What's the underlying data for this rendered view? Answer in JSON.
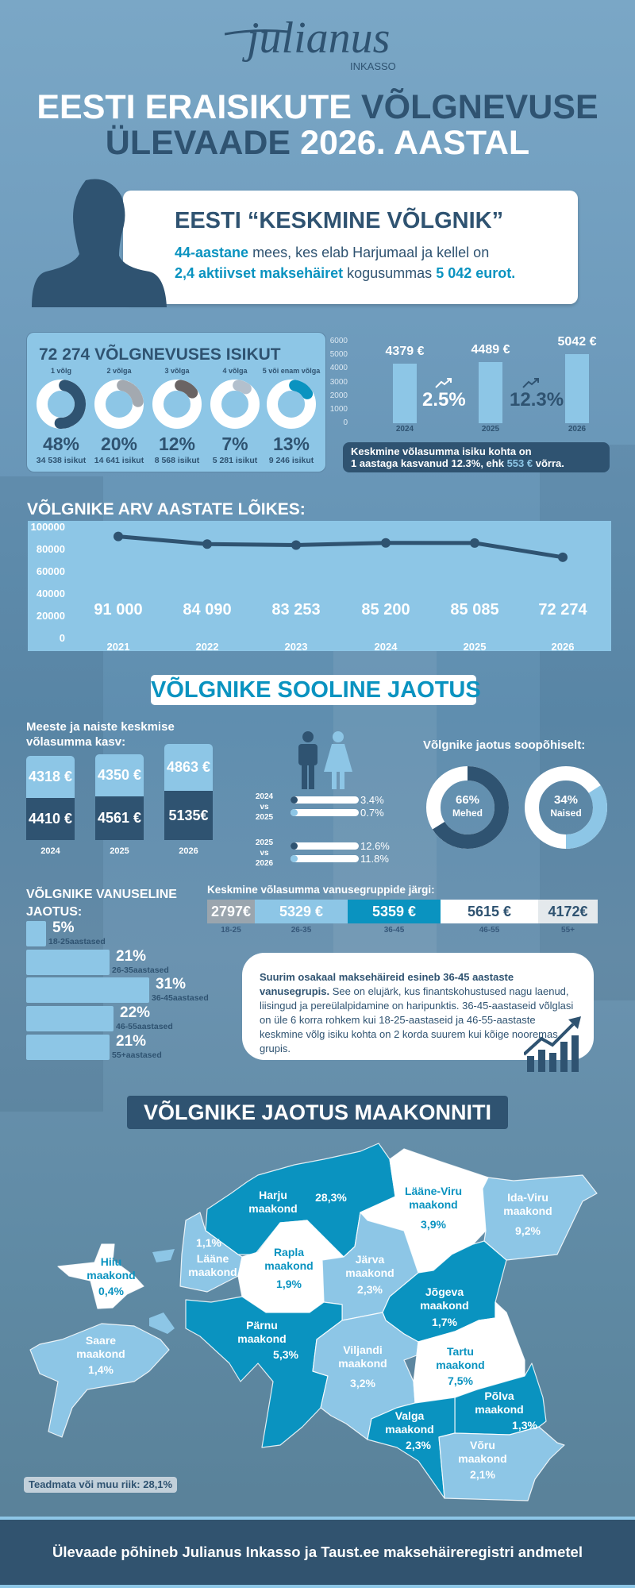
{
  "logo": {
    "brand": "julianus",
    "sub": "INKASSO"
  },
  "title": {
    "line1_a": "EESTI ERAISIKUTE ",
    "line1_b": "VÕLGNEVUSE",
    "line2_a": "ÜLEVAADE ",
    "line2_b": "2026. AASTAL"
  },
  "average_debtor": {
    "heading": "EESTI “KESKMINE VÕLGNIK”",
    "l1_hl": "44-aastane",
    "l1_rest": " mees, kes elab Harjumaal ja kellel on",
    "l2_hl": "2,4 aktiivset maksehäiret",
    "l2_mid": " kogusummas ",
    "l2_hl2": "5 042 eurot."
  },
  "debt_count": {
    "title": "72 274 VÕLGNEVUSES ISIKUT",
    "items": [
      {
        "label": "1 võlg",
        "pct": "48%",
        "value": 48,
        "count": "34 538 isikut",
        "color": "#2f5371"
      },
      {
        "label": "2 võlga",
        "pct": "20%",
        "value": 20,
        "count": "14 641 isikut",
        "color": "#a3a9b0"
      },
      {
        "label": "3 võlga",
        "pct": "12%",
        "value": 12,
        "count": "8 568 isikut",
        "color": "#6a6464"
      },
      {
        "label": "4 võlga",
        "pct": "7%",
        "value": 7,
        "count": "5 281 isikut",
        "color": "#b3c0cd"
      },
      {
        "label": "5 või enam võlga",
        "pct": "13%",
        "value": 13,
        "count": "9 246 isikut",
        "color": "#0a93c0"
      }
    ]
  },
  "avg_debt_chart": {
    "type": "bar",
    "yticks": [
      "6000",
      "5000",
      "4000",
      "3000",
      "2000",
      "1000",
      "0"
    ],
    "ylim": [
      0,
      6000
    ],
    "categories": [
      "2024",
      "2025",
      "2026"
    ],
    "values": [
      4379,
      4489,
      5042
    ],
    "labels": [
      "4379 €",
      "4489 €",
      "5042 €"
    ],
    "growth": [
      "2.5%",
      "12.3%"
    ]
  },
  "avg_debt_note": {
    "text1": "Keskmine võlasumma isiku kohta on",
    "text2a": "1 aastaga kasvanud 12.3%, ehk ",
    "text2b": "553 €",
    "text2c": " võrra."
  },
  "debtors_by_year": {
    "heading": "VÕLGNIKE ARV AASTATE LÕIKES:",
    "chart_data": {
      "type": "line",
      "x": [
        "2021",
        "2022",
        "2023",
        "2024",
        "2025",
        "2026"
      ],
      "values": [
        91000,
        84090,
        83253,
        85200,
        85085,
        72274
      ],
      "labels": [
        "91 000",
        "84 090",
        "83 253",
        "85 200",
        "85 085",
        "72 274"
      ],
      "yticks": [
        "100000",
        "80000",
        "60000",
        "40000",
        "20000",
        "0"
      ],
      "ylim": [
        0,
        100000
      ]
    }
  },
  "gender": {
    "heading": "VÕLGNIKE SOOLINE JAOTUS",
    "avg_title1": "Meeste ja naiste keskmise",
    "avg_title2": "võlasumma kasv:",
    "stacks": [
      {
        "year": "2024",
        "women": "4318 €",
        "men": "4410 €"
      },
      {
        "year": "2025",
        "women": "4350 €",
        "men": "4561 €"
      },
      {
        "year": "2026",
        "women": "4863 €",
        "men": "5135€"
      }
    ],
    "comparisons": [
      {
        "l1": "2024",
        "l2": "vs",
        "l3": "2025",
        "men": "3.4%",
        "women": "0.7%"
      },
      {
        "l1": "2025",
        "l2": "vs",
        "l3": "2026",
        "men": "12.6%",
        "women": "11.8%"
      }
    ],
    "split_title": "Võlgnike jaotus soopõhiselt:",
    "men": {
      "pct": "66%",
      "value": 66,
      "label": "Mehed",
      "color": "#2f5371"
    },
    "women": {
      "pct": "34%",
      "value": 34,
      "label": "Naised",
      "color": "#8dc6e6"
    }
  },
  "age": {
    "title1": "VÕLGNIKE VANUSELINE",
    "title2": "JAOTUS:",
    "groups": [
      {
        "pct": "5%",
        "value": 5,
        "label": "18-25aastased"
      },
      {
        "pct": "21%",
        "value": 21,
        "label": "26-35aastased"
      },
      {
        "pct": "31%",
        "value": 31,
        "label": "36-45aastased"
      },
      {
        "pct": "22%",
        "value": 22,
        "label": "46-55aastased"
      },
      {
        "pct": "21%",
        "value": 21,
        "label": "55+aastased"
      }
    ],
    "avg_title": "Keskmine võlasumma vanusegruppide järgi:",
    "avg": [
      {
        "value": "2797€",
        "age": "18-25",
        "bg": "#9aa5ae",
        "fg": "#ffffff"
      },
      {
        "value": "5329 €",
        "age": "26-35",
        "bg": "#8dc6e6",
        "fg": "#ffffff"
      },
      {
        "value": "5359 €",
        "age": "36-45",
        "bg": "#0a93c0",
        "fg": "#ffffff"
      },
      {
        "value": "5615 €",
        "age": "46-55",
        "bg": "#ffffff",
        "fg": "#2f5371"
      },
      {
        "value": "4172€",
        "age": "55+",
        "bg": "#e4e9ec",
        "fg": "#2f5371"
      }
    ],
    "note_bold": "Suurim osakaal maksehäireid esineb 36-45 aastaste vanusegrupis.",
    "note_rest": " See on elujärk, kus finantskohustused nagu laenud, liisingud ja pereülalpidamine on haripunktis. 36-45-aastaseid võlglasi on üle 6 korra rohkem kui 18-25-aastaseid ja 46-55-aastaste keskmine võlg isiku kohta on 2 korda suurem kui kõige nooremas grupis."
  },
  "regions": {
    "heading": "VÕLGNIKE JAOTUS MAAKONNITI",
    "colors": {
      "dark": "#0a93c0",
      "light": "#8dc6e6",
      "white": "#ffffff"
    },
    "counties": [
      {
        "name": "Harju",
        "suffix": "maakond",
        "pct": "28,3%",
        "tone": "dark"
      },
      {
        "name": "Lääne-Viru",
        "suffix": "maakond",
        "pct": "3,9%",
        "tone": "white"
      },
      {
        "name": "Ida-Viru",
        "suffix": "maakond",
        "pct": "9,2%",
        "tone": "light"
      },
      {
        "name": "Lääne",
        "suffix": "maakond",
        "pct": "1,1%",
        "tone": "light"
      },
      {
        "name": "Hiiu",
        "suffix": "maakond",
        "pct": "0,4%",
        "tone": "white"
      },
      {
        "name": "Rapla",
        "suffix": "maakond",
        "pct": "1,9%",
        "tone": "white"
      },
      {
        "name": "Järva",
        "suffix": "maakond",
        "pct": "2,3%",
        "tone": "light"
      },
      {
        "name": "Jõgeva",
        "suffix": "maakond",
        "pct": "1,7%",
        "tone": "dark"
      },
      {
        "name": "Pärnu",
        "suffix": "maakond",
        "pct": "5,3%",
        "tone": "dark"
      },
      {
        "name": "Saare",
        "suffix": "maakond",
        "pct": "1,4%",
        "tone": "light"
      },
      {
        "name": "Viljandi",
        "suffix": "maakond",
        "pct": "3,2%",
        "tone": "light"
      },
      {
        "name": "Tartu",
        "suffix": "maakond",
        "pct": "7,5%",
        "tone": "white"
      },
      {
        "name": "Põlva",
        "suffix": "maakond",
        "pct": "1,3%",
        "tone": "dark"
      },
      {
        "name": "Valga",
        "suffix": "maakond",
        "pct": "2,3%",
        "tone": "dark"
      },
      {
        "name": "Võru",
        "suffix": "maakond",
        "pct": "2,1%",
        "tone": "light"
      }
    ],
    "unknown": "Teadmata või muu riik: 28,1%"
  },
  "footer": {
    "text": "Ülevaade põhineb Julianus Inkasso ja Taust.ee maksehäireregistri andmetel"
  }
}
